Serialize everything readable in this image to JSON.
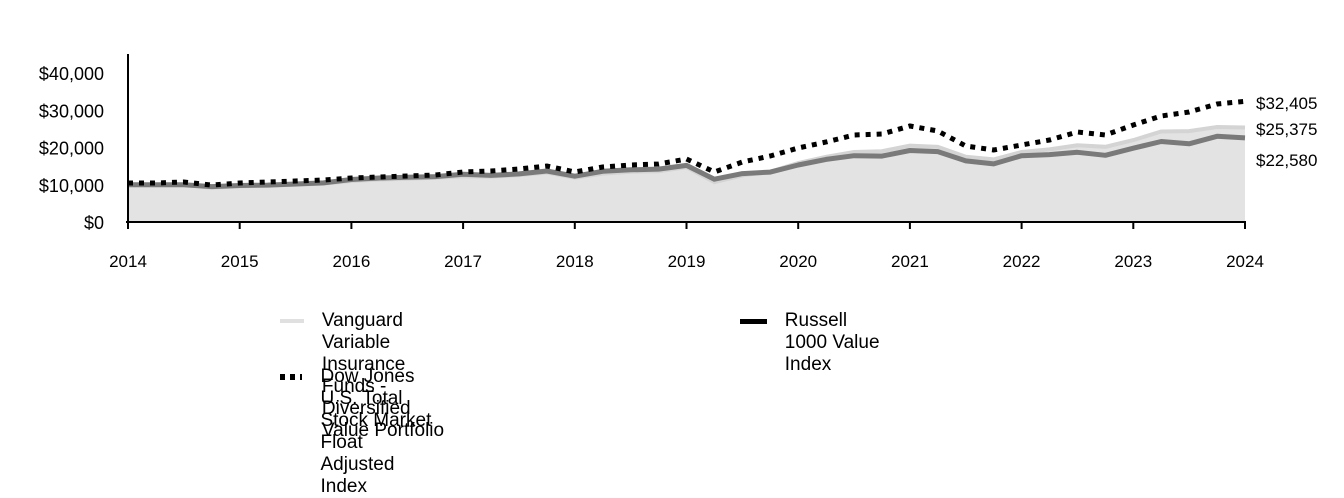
{
  "chart_data": {
    "type": "area",
    "title": "",
    "xlabel": "",
    "ylabel": "",
    "ylim": [
      0,
      45000
    ],
    "yticks": [
      0,
      10000,
      20000,
      30000,
      40000
    ],
    "ytick_labels": [
      "$0",
      "$10,000",
      "$20,000",
      "$30,000",
      "$40,000"
    ],
    "xlim": [
      2014,
      2024
    ],
    "xticks": [
      2014,
      2015,
      2016,
      2017,
      2018,
      2019,
      2020,
      2021,
      2022,
      2023,
      2024
    ],
    "xtick_labels": [
      "2014",
      "2015",
      "2016",
      "2017",
      "2018",
      "2019",
      "2020",
      "2021",
      "2022",
      "2023",
      "2024"
    ],
    "grid": false,
    "legend_position": "bottom",
    "x": [
      2014,
      2014.25,
      2014.5,
      2014.75,
      2015,
      2015.25,
      2015.5,
      2015.75,
      2016,
      2016.25,
      2016.5,
      2016.75,
      2017,
      2017.25,
      2017.5,
      2017.75,
      2018,
      2018.25,
      2018.5,
      2018.75,
      2019,
      2019.25,
      2019.5,
      2019.75,
      2020,
      2020.25,
      2020.5,
      2020.75,
      2021,
      2021.25,
      2021.5,
      2021.75,
      2022,
      2022.25,
      2022.5,
      2022.75,
      2023,
      2023.25,
      2023.5,
      2023.75,
      2024
    ],
    "series": [
      {
        "name": "Vanguard Variable Insurance Funds - Diversified Value Portfolio",
        "style": "area",
        "color": "#e0e0e0",
        "end_label": "$25,375",
        "values": [
          10000,
          10000,
          10000,
          9200,
          9600,
          9800,
          10000,
          10300,
          11000,
          11400,
          11600,
          11900,
          12300,
          12200,
          12600,
          13300,
          11900,
          13000,
          13500,
          13600,
          14700,
          10700,
          12500,
          13500,
          15800,
          17500,
          18800,
          19000,
          20500,
          20200,
          17500,
          16800,
          18800,
          19500,
          20600,
          20200,
          22000,
          24300,
          24400,
          25500,
          25375
        ]
      },
      {
        "name": "Russell 1000 Value Index",
        "style": "line",
        "color": "#000000",
        "end_label": "$22,580",
        "values": [
          10000,
          10000,
          10000,
          9500,
          9800,
          9900,
          10200,
          10500,
          11400,
          11800,
          12000,
          12200,
          12800,
          12500,
          12900,
          13700,
          12300,
          13600,
          14000,
          14200,
          15200,
          11500,
          13000,
          13400,
          15300,
          16800,
          17800,
          17700,
          19200,
          18900,
          16400,
          15600,
          17800,
          18100,
          18700,
          17900,
          19800,
          21600,
          21000,
          23000,
          22580
        ]
      },
      {
        "name": "Dow Jones U.S. Total Stock Market Float Adjusted Index",
        "style": "dotted",
        "color": "#000000",
        "end_label": "$32,405",
        "values": [
          10470,
          10470,
          10740,
          9900,
          10470,
          10740,
          11010,
          11280,
          11810,
          12080,
          12350,
          12620,
          13420,
          13690,
          14230,
          15030,
          13420,
          14770,
          15300,
          15570,
          16910,
          13420,
          16110,
          17720,
          19870,
          21480,
          23360,
          23620,
          25770,
          24430,
          20400,
          19330,
          20670,
          22010,
          24160,
          23360,
          26040,
          28460,
          29530,
          31680,
          32405
        ]
      }
    ]
  },
  "legend": {
    "items": [
      {
        "label": "Vanguard Variable Insurance Funds -\nDiversified Value Portfolio"
      },
      {
        "label": "Russell 1000 Value Index"
      },
      {
        "label": "Dow Jones U.S. Total Stock Market\nFloat Adjusted Index"
      }
    ]
  }
}
